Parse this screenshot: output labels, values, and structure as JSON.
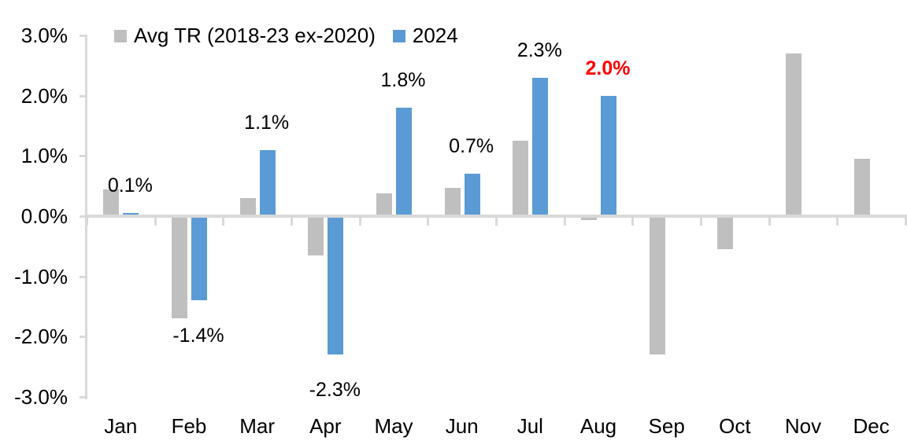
{
  "legend": {
    "items": [
      {
        "label": "Avg TR (2018-23 ex-2020)",
        "color": "#BFBFBF"
      },
      {
        "label": "2024",
        "color": "#5B9BD5"
      }
    ]
  },
  "chart_data": {
    "type": "bar",
    "title": "",
    "xlabel": "",
    "ylabel": "",
    "categories": [
      "Jan",
      "Feb",
      "Mar",
      "Apr",
      "May",
      "Jun",
      "Jul",
      "Aug",
      "Sep",
      "Oct",
      "Nov",
      "Dec"
    ],
    "series": [
      {
        "name": "Avg TR (2018-23 ex-2020)",
        "color": "#BFBFBF",
        "values": [
          0.45,
          -1.7,
          0.3,
          -0.65,
          0.38,
          0.47,
          1.25,
          -0.07,
          -2.3,
          -0.55,
          2.7,
          0.95
        ]
      },
      {
        "name": "2024",
        "color": "#5B9BD5",
        "values": [
          0.05,
          -1.4,
          1.1,
          -2.3,
          1.8,
          0.7,
          2.3,
          2.0,
          null,
          null,
          null,
          null
        ]
      }
    ],
    "data_labels": [
      {
        "text": "0.1%",
        "color": "#000000",
        "bold": false
      },
      {
        "text": "-1.4%",
        "color": "#000000",
        "bold": false
      },
      {
        "text": "1.1%",
        "color": "#000000",
        "bold": false
      },
      {
        "text": "-2.3%",
        "color": "#000000",
        "bold": false
      },
      {
        "text": "1.8%",
        "color": "#000000",
        "bold": false
      },
      {
        "text": "0.7%",
        "color": "#000000",
        "bold": false
      },
      {
        "text": "2.3%",
        "color": "#000000",
        "bold": false
      },
      {
        "text": "2.0%",
        "color": "#FF0000",
        "bold": true
      },
      null,
      null,
      null,
      null
    ],
    "y_ticks": [
      "3.0%",
      "2.0%",
      "1.0%",
      "0.0%",
      "-1.0%",
      "-2.0%",
      "-3.0%"
    ],
    "y_tick_values": [
      3,
      2,
      1,
      0,
      -1,
      -2,
      -3
    ],
    "ylim": [
      -3,
      3
    ],
    "grid": false,
    "legend_position": "top-left",
    "axis_color": "#D9D9D9",
    "highlight_color": "#FF0000"
  }
}
